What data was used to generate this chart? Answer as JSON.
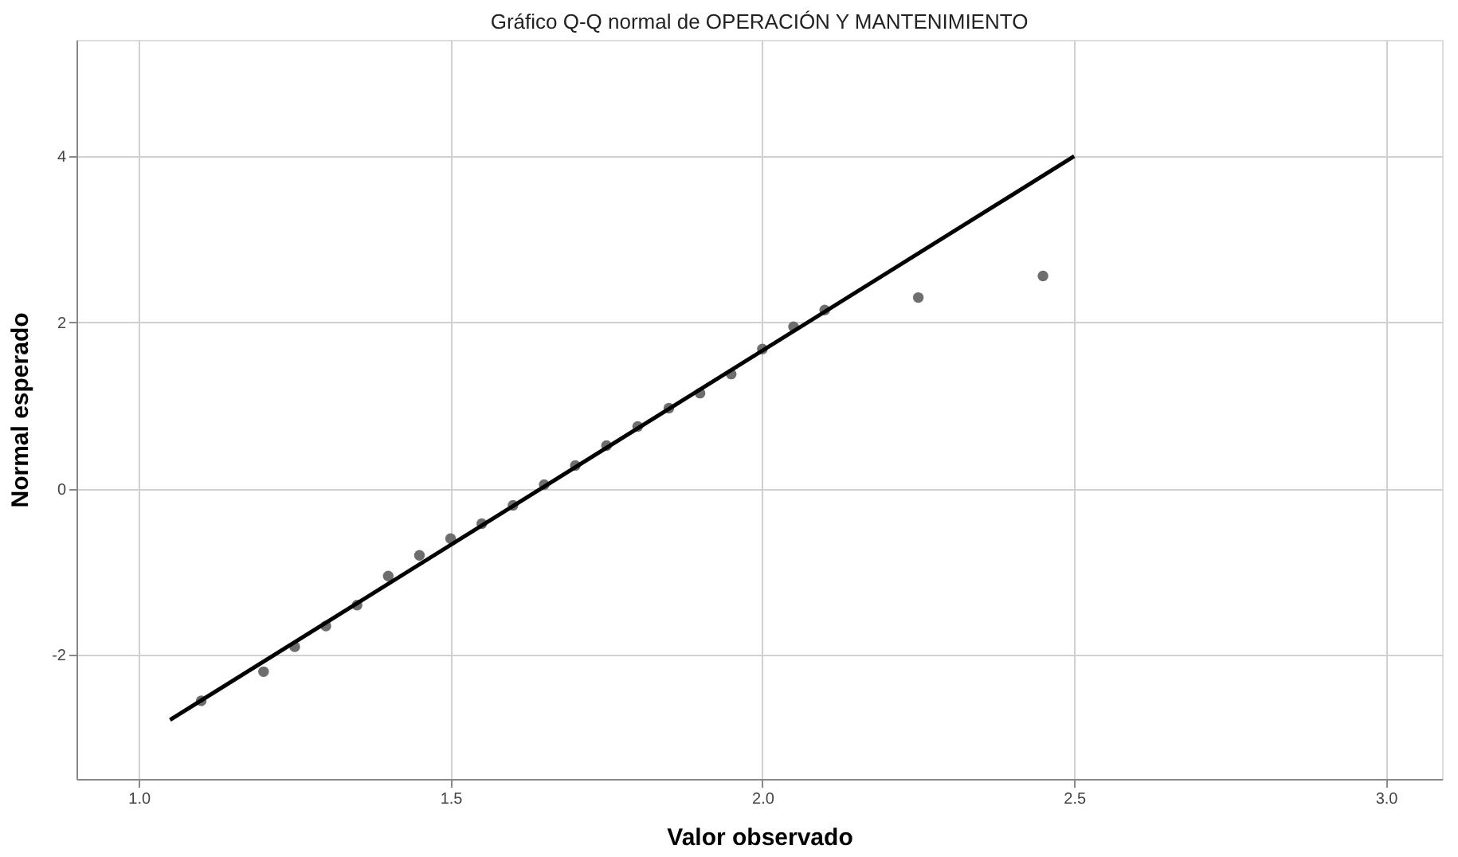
{
  "chart_data": {
    "type": "scatter",
    "title": "Gráfico Q-Q normal de OPERACIÓN Y MANTENIMIENTO",
    "xlabel": "Valor observado",
    "ylabel": "Normal esperado",
    "xlim": [
      0.9,
      3.09
    ],
    "ylim": [
      -3.49,
      5.4
    ],
    "xticks": [
      {
        "value": 1,
        "label": "1.0"
      },
      {
        "value": 1.5,
        "label": "1.5"
      },
      {
        "value": 2,
        "label": "2.0"
      },
      {
        "value": 2.5,
        "label": "2.5"
      },
      {
        "value": 3,
        "label": "3.0"
      }
    ],
    "yticks": [
      -2,
      0,
      2,
      4
    ],
    "grid": true,
    "series": [
      {
        "type": "scatter",
        "marker": "circle",
        "color": "#6e6e6e",
        "x": [
          1.1,
          1.2,
          1.25,
          1.3,
          1.35,
          1.4,
          1.45,
          1.5,
          1.55,
          1.6,
          1.65,
          1.7,
          1.75,
          1.8,
          1.85,
          1.9,
          1.95,
          2.0,
          2.05,
          2.1,
          2.25,
          2.45
        ],
        "values": [
          -2.55,
          -2.2,
          -1.9,
          -1.65,
          -1.4,
          -1.05,
          -0.8,
          -0.6,
          -0.42,
          -0.2,
          0.05,
          0.28,
          0.52,
          0.75,
          0.97,
          1.15,
          1.38,
          1.68,
          1.95,
          2.15,
          2.3,
          2.56
        ]
      },
      {
        "type": "line",
        "color": "#000000",
        "x": [
          1.05,
          2.5
        ],
        "values": [
          -2.78,
          4.0
        ]
      }
    ]
  }
}
